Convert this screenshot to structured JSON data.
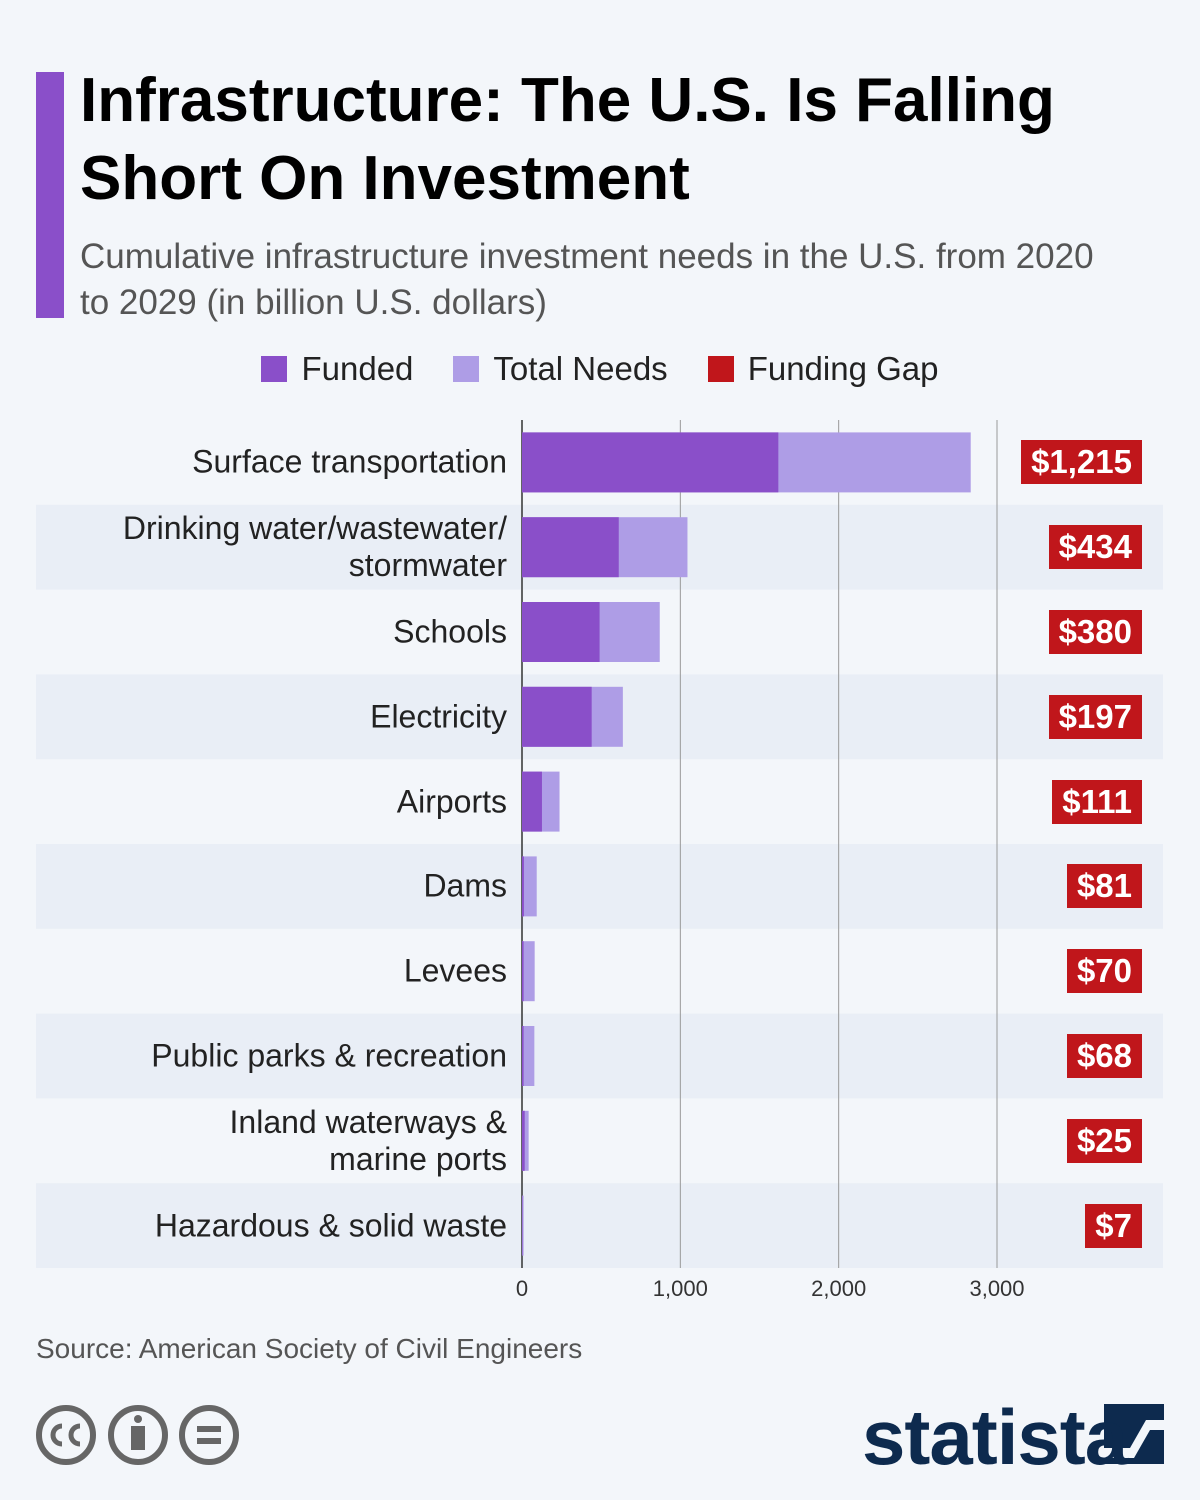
{
  "chart_data": {
    "type": "bar",
    "orientation": "horizontal",
    "title": "Infrastructure: The U.S. Is Falling Short On Investment",
    "subtitle": "Cumulative infrastructure investment needs in the U.S. from 2020 to 2029 (in billion U.S. dollars)",
    "categories": [
      "Surface transportation",
      "Drinking water/wastewater/\nstormwater",
      "Schools",
      "Electricity",
      "Airports",
      "Dams",
      "Levees",
      "Public parks & recreation",
      "Inland waterways &\nmarine ports",
      "Hazardous & solid waste"
    ],
    "series": [
      {
        "name": "Funded",
        "color": "#8a4fc9",
        "values": [
          1619,
          611,
          490,
          440,
          126,
          12,
          10,
          10,
          17,
          3
        ]
      },
      {
        "name": "Total Needs",
        "color": "#ae9de6",
        "values": [
          2834,
          1045,
          870,
          637,
          237,
          93,
          80,
          78,
          42,
          10
        ]
      },
      {
        "name": "Funding Gap",
        "color": "#c0161b",
        "values": [
          1215,
          434,
          380,
          197,
          111,
          81,
          70,
          68,
          25,
          7
        ],
        "value_labels": [
          "$1,215",
          "$434",
          "$380",
          "$197",
          "$111",
          "$81",
          "$70",
          "$68",
          "$25",
          "$7"
        ]
      }
    ],
    "xlim": [
      0,
      3000
    ],
    "xticks": [
      0,
      {
        "value": 1000,
        "label": "1,000"
      },
      {
        "value": 2000,
        "label": "2,000"
      },
      {
        "value": 3000,
        "label": "3,000"
      }
    ],
    "grid": true,
    "legend": "top",
    "source": "Source: American Society of Civil Engineers",
    "logo": "statista"
  }
}
